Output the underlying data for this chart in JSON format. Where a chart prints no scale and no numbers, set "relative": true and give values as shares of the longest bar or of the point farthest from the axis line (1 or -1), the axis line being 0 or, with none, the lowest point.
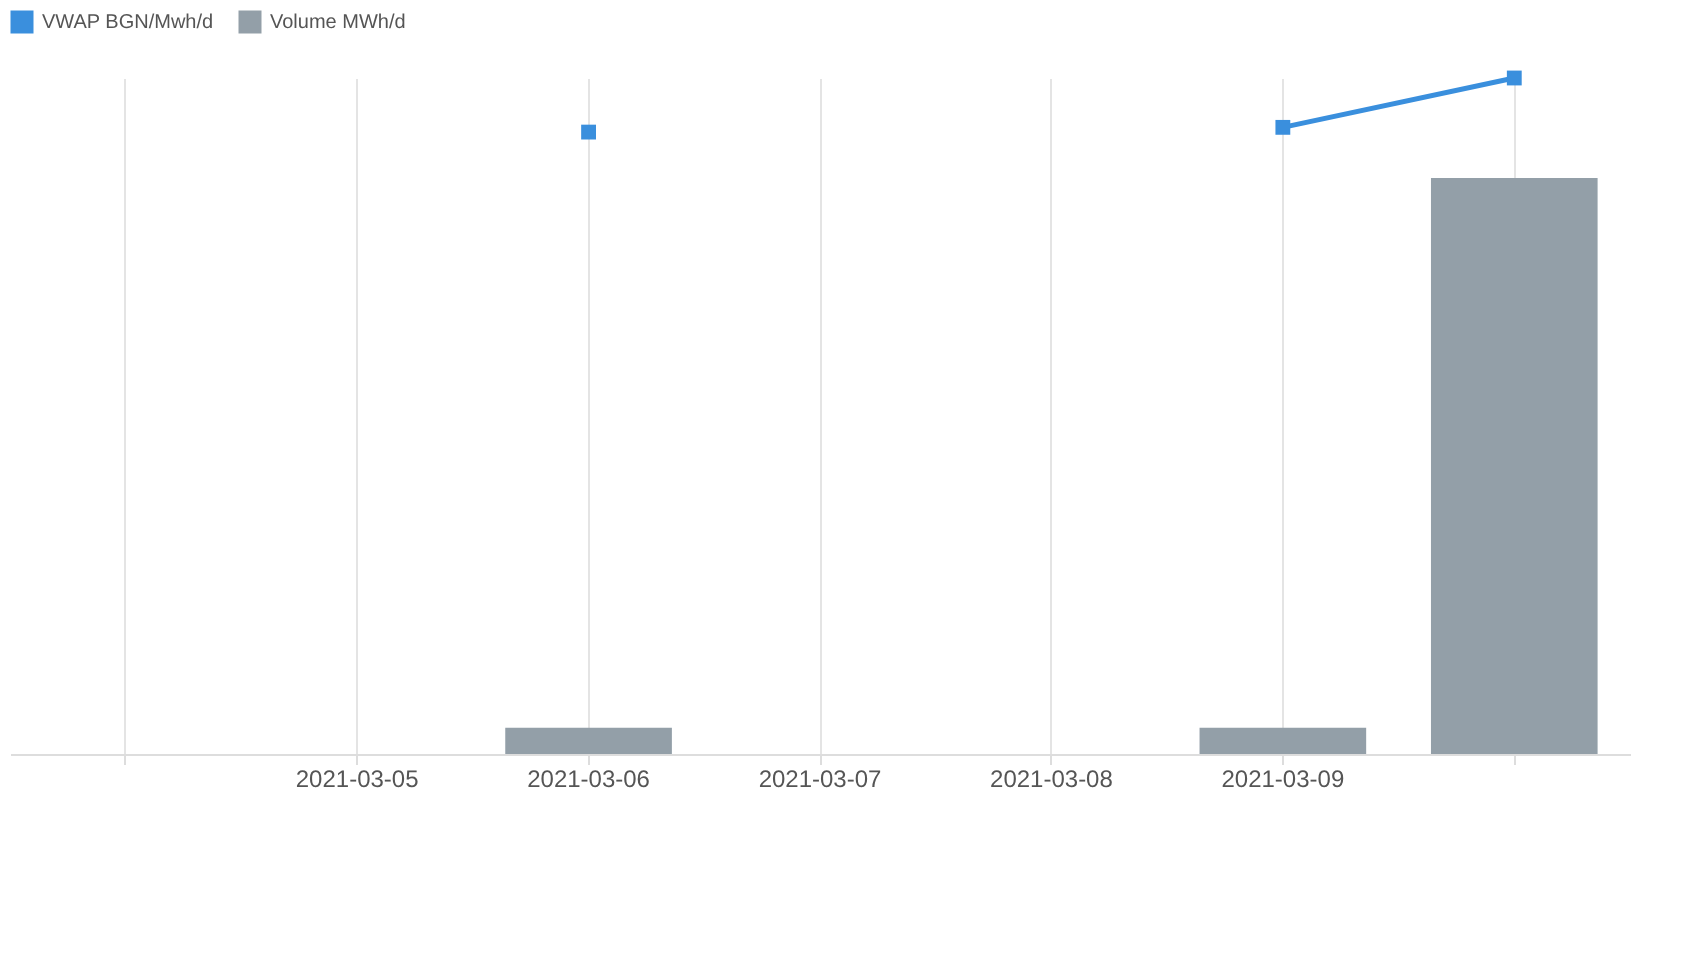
{
  "chart_data": {
    "type": "bar",
    "relative": true,
    "categories": [
      null,
      "2021-03-05",
      "2021-03-06",
      "2021-03-07",
      "2021-03-08",
      "2021-03-09",
      null
    ],
    "series": [
      {
        "name": "VWAP BGN/Mwh/d",
        "type": "line",
        "color": "#3a8fdd",
        "values": [
          null,
          null,
          0.92,
          null,
          null,
          0.927,
          1.0
        ]
      },
      {
        "name": "Volume MWh/d",
        "color": "#939fa8",
        "values": [
          null,
          null,
          0.039,
          null,
          null,
          0.039,
          0.852
        ]
      }
    ],
    "legend": "top",
    "grid": "x",
    "marker": "square",
    "line_style": "solid"
  }
}
